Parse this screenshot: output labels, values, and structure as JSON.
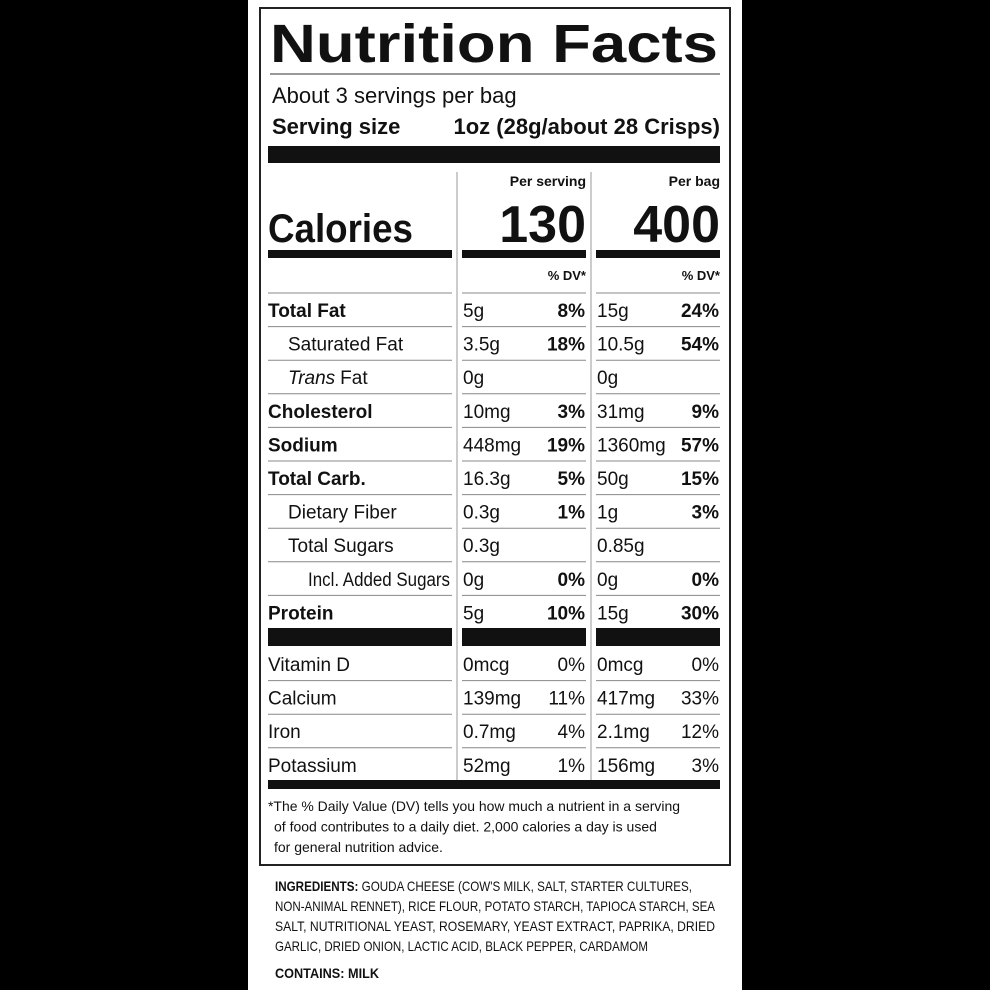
{
  "title": "Nutrition Facts",
  "servings": "About 3 servings per bag",
  "serving_size": {
    "label": "Serving size",
    "value": "1oz (28g/about 28 Crisps)"
  },
  "calories": {
    "label": "Calories",
    "per_serving_header": "Per serving",
    "per_serving": "130",
    "per_bag_header": "Per bag",
    "per_bag": "400"
  },
  "dv_headers": [
    "% DV*",
    "% DV*"
  ],
  "nutrients": [
    {
      "name": "Total Fat",
      "style": "bold",
      "serving_amount": "5g",
      "serving_dv": "8%",
      "bag_amount": "15g",
      "bag_dv": "24%"
    },
    {
      "name": "Saturated Fat",
      "style": "sub",
      "serving_amount": "3.5g",
      "serving_dv": "18%",
      "bag_amount": "10.5g",
      "bag_dv": "54%"
    },
    {
      "name_italic": "Trans",
      "name": "Fat",
      "style": "sub",
      "serving_amount": "0g",
      "bag_amount": "0g"
    },
    {
      "name": "Cholesterol",
      "style": "bold",
      "serving_amount": "10mg",
      "serving_dv": "3%",
      "bag_amount": "31mg",
      "bag_dv": "9%"
    },
    {
      "name": "Sodium",
      "style": "bold",
      "serving_amount": "448mg",
      "serving_dv": "19%",
      "bag_amount": "1360mg",
      "bag_dv": "57%"
    },
    {
      "name": "Total Carb.",
      "style": "bold",
      "serving_amount": "16.3g",
      "serving_dv": "5%",
      "bag_amount": "50g",
      "bag_dv": "15%"
    },
    {
      "name": "Dietary Fiber",
      "style": "sub",
      "serving_amount": "0.3g",
      "serving_dv": "1%",
      "bag_amount": "1g",
      "bag_dv": "3%"
    },
    {
      "name": "Total Sugars",
      "style": "sub",
      "serving_amount": "0.3g",
      "bag_amount": "0.85g"
    },
    {
      "name": "Incl. Added Sugars",
      "style": "subsub",
      "serving_amount": "0g",
      "serving_dv": "0%",
      "bag_amount": "0g",
      "bag_dv": "0%"
    },
    {
      "name": "Protein",
      "style": "bold",
      "serving_amount": "5g",
      "serving_dv": "10%",
      "bag_amount": "15g",
      "bag_dv": "30%"
    }
  ],
  "vitamins": [
    {
      "name": "Vitamin D",
      "serving_amount": "0mcg",
      "serving_dv": "0%",
      "bag_amount": "0mcg",
      "bag_dv": "0%"
    },
    {
      "name": "Calcium",
      "serving_amount": "139mg",
      "serving_dv": "11%",
      "bag_amount": "417mg",
      "bag_dv": "33%"
    },
    {
      "name": "Iron",
      "serving_amount": "0.7mg",
      "serving_dv": "4%",
      "bag_amount": "2.1mg",
      "bag_dv": "12%"
    },
    {
      "name": "Potassium",
      "serving_amount": "52mg",
      "serving_dv": "1%",
      "bag_amount": "156mg",
      "bag_dv": "3%"
    }
  ],
  "footnote": [
    "*The % Daily Value (DV) tells you how much a nutrient in a serving",
    "of food contributes to a daily diet. 2,000 calories a day is used",
    "for general nutrition advice."
  ],
  "ingredients": {
    "label": "INGREDIENTS:",
    "lines": [
      "GOUDA CHEESE (COW'S MILK, SALT, STARTER CULTURES,",
      "NON-ANIMAL RENNET), RICE FLOUR, POTATO STARCH, TAPIOCA STARCH, SEA",
      "SALT, NUTRITIONAL YEAST, ROSEMARY, YEAST EXTRACT, PAPRIKA, DRIED",
      "GARLIC, DRIED ONION, LACTIC ACID, BLACK PEPPER, CARDAMOM"
    ]
  },
  "contains": "CONTAINS: MILK"
}
